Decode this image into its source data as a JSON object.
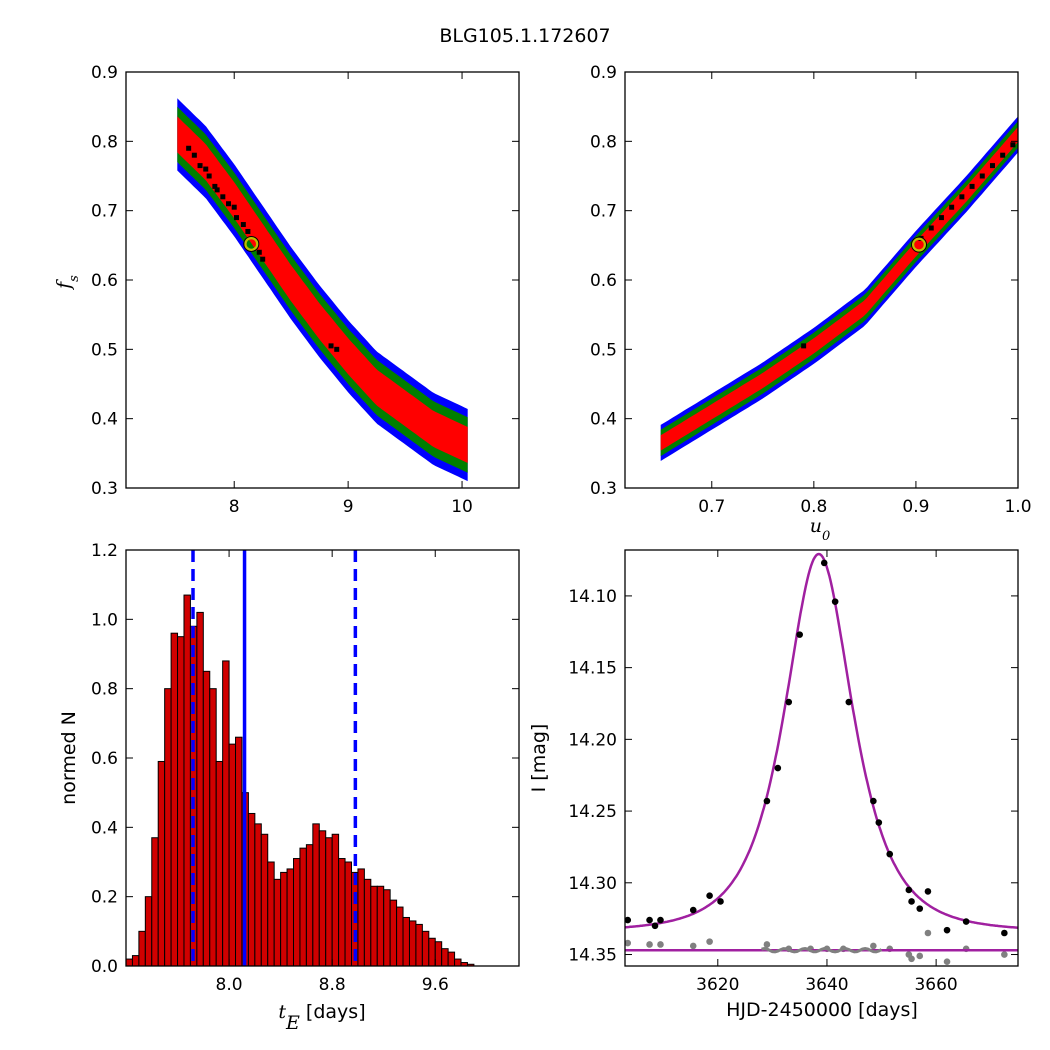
{
  "figure_title": "BLG105.1.172607",
  "colors": {
    "outer_contour": "#0000ff",
    "mid_contour": "#007f00",
    "inner_contour": "#ff0000",
    "mcmc_points": "#000000",
    "best_fit_marker_edge": "#bfbf00",
    "hist_bars": "#d00000",
    "median_line": "#0000ff",
    "model_curve": "#a020a0",
    "residuals": "#808080"
  },
  "chart_data": [
    {
      "id": "panel_tE_fs",
      "type": "heatmap",
      "title": "",
      "xlabel": "",
      "ylabel_base": "f",
      "ylabel_sub": "s",
      "xlim": [
        7.05,
        10.5
      ],
      "ylim": [
        0.3,
        0.9
      ],
      "xticks": [
        8,
        9,
        10
      ],
      "xtick_labels": [
        "8",
        "9",
        "10"
      ],
      "yticks": [
        0.3,
        0.4,
        0.5,
        0.6,
        0.7,
        0.8,
        0.9
      ],
      "ytick_labels": [
        "0.3",
        "0.4",
        "0.5",
        "0.6",
        "0.7",
        "0.8",
        "0.9"
      ],
      "contour_ridge": [
        [
          7.5,
          0.81
        ],
        [
          7.75,
          0.77
        ],
        [
          8.0,
          0.715
        ],
        [
          8.25,
          0.655
        ],
        [
          8.5,
          0.595
        ],
        [
          8.75,
          0.54
        ],
        [
          9.0,
          0.49
        ],
        [
          9.25,
          0.445
        ],
        [
          9.5,
          0.415
        ],
        [
          9.75,
          0.385
        ],
        [
          10.05,
          0.362
        ]
      ],
      "contour_halfwidth_fs": {
        "outer": 0.052,
        "mid": 0.04,
        "inner": 0.026
      },
      "mcmc_points": [
        [
          7.6,
          0.79
        ],
        [
          7.65,
          0.78
        ],
        [
          7.7,
          0.765
        ],
        [
          7.75,
          0.76
        ],
        [
          7.78,
          0.75
        ],
        [
          7.83,
          0.735
        ],
        [
          7.85,
          0.73
        ],
        [
          7.9,
          0.72
        ],
        [
          7.95,
          0.71
        ],
        [
          8.0,
          0.705
        ],
        [
          8.02,
          0.69
        ],
        [
          8.08,
          0.68
        ],
        [
          8.12,
          0.67
        ],
        [
          8.22,
          0.64
        ],
        [
          8.25,
          0.63
        ],
        [
          8.85,
          0.505
        ],
        [
          8.9,
          0.5
        ]
      ],
      "best_fit": [
        8.15,
        0.652
      ]
    },
    {
      "id": "panel_u0_fs",
      "type": "heatmap",
      "title": "",
      "xlabel_base": "u",
      "xlabel_sub": "0",
      "ylabel": "",
      "xlim": [
        0.615,
        1.0
      ],
      "ylim": [
        0.3,
        0.9
      ],
      "xticks": [
        0.7,
        0.8,
        0.9,
        1.0
      ],
      "xtick_labels": [
        "0.7",
        "0.8",
        "0.9",
        "1.0"
      ],
      "yticks": [
        0.3,
        0.4,
        0.5,
        0.6,
        0.7,
        0.8,
        0.9
      ],
      "ytick_labels": [
        "0.3",
        "0.4",
        "0.5",
        "0.6",
        "0.7",
        "0.8",
        "0.9"
      ],
      "contour_ridge": [
        [
          0.65,
          0.365
        ],
        [
          0.7,
          0.41
        ],
        [
          0.75,
          0.455
        ],
        [
          0.8,
          0.505
        ],
        [
          0.85,
          0.56
        ],
        [
          0.9,
          0.645
        ],
        [
          0.95,
          0.725
        ],
        [
          1.0,
          0.81
        ]
      ],
      "contour_halfwidth_fs": {
        "outer": 0.026,
        "mid": 0.019,
        "inner": 0.011
      },
      "mcmc_points": [
        [
          0.79,
          0.505
        ],
        [
          0.905,
          0.66
        ],
        [
          0.915,
          0.675
        ],
        [
          0.925,
          0.69
        ],
        [
          0.935,
          0.705
        ],
        [
          0.945,
          0.72
        ],
        [
          0.955,
          0.735
        ],
        [
          0.965,
          0.75
        ],
        [
          0.975,
          0.765
        ],
        [
          0.985,
          0.78
        ],
        [
          0.995,
          0.795
        ]
      ],
      "best_fit": [
        0.903,
        0.651
      ]
    },
    {
      "id": "panel_tE_hist",
      "type": "bar",
      "title": "",
      "xlabel_base": "t",
      "xlabel_sub": "E",
      "xlabel_suffix": " [days]",
      "ylabel": "normed N",
      "xlim": [
        7.2,
        10.25
      ],
      "ylim": [
        0.0,
        1.2
      ],
      "xticks": [
        8.0,
        8.8,
        9.6
      ],
      "xtick_labels": [
        "8.0",
        "8.8",
        "9.6"
      ],
      "yticks": [
        0.0,
        0.2,
        0.4,
        0.6,
        0.8,
        1.0,
        1.2
      ],
      "ytick_labels": [
        "0.0",
        "0.2",
        "0.4",
        "0.6",
        "0.8",
        "1.0",
        "1.2"
      ],
      "bin_start": 7.2,
      "bin_width": 0.05,
      "values": [
        0.02,
        0.03,
        0.1,
        0.2,
        0.37,
        0.59,
        0.8,
        0.96,
        0.95,
        1.07,
        0.98,
        1.02,
        0.85,
        0.8,
        0.59,
        0.88,
        0.64,
        0.66,
        0.5,
        0.44,
        0.41,
        0.38,
        0.3,
        0.25,
        0.27,
        0.28,
        0.31,
        0.34,
        0.35,
        0.41,
        0.39,
        0.37,
        0.38,
        0.31,
        0.3,
        0.27,
        0.28,
        0.25,
        0.23,
        0.23,
        0.22,
        0.19,
        0.17,
        0.14,
        0.13,
        0.12,
        0.1,
        0.08,
        0.07,
        0.05,
        0.04,
        0.02,
        0.01,
        0.005
      ],
      "median_tE": 8.12,
      "quantile_tE": [
        7.72,
        8.98
      ]
    },
    {
      "id": "panel_lightcurve",
      "type": "scatter",
      "title": "",
      "xlabel": "HJD-2450000 [days]",
      "ylabel": "I [mag]",
      "xlim": [
        3603,
        3675
      ],
      "ylim": [
        14.358,
        14.068
      ],
      "y_inverted": true,
      "xticks": [
        3620,
        3640,
        3660
      ],
      "xtick_labels": [
        "3620",
        "3640",
        "3660"
      ],
      "yticks": [
        14.1,
        14.15,
        14.2,
        14.25,
        14.3,
        14.35
      ],
      "ytick_labels": [
        "14.10",
        "14.15",
        "14.20",
        "14.25",
        "14.30",
        "14.35"
      ],
      "model": {
        "t0": 3638.5,
        "u0": 0.903,
        "tE": 8.15,
        "fs": 0.652,
        "I_base": 14.334
      },
      "baseline_I": 14.347,
      "data_points": [
        [
          3603.5,
          14.326
        ],
        [
          3607.5,
          14.326
        ],
        [
          3608.5,
          14.33
        ],
        [
          3609.5,
          14.326
        ],
        [
          3615.5,
          14.319
        ],
        [
          3618.5,
          14.309
        ],
        [
          3620.5,
          14.313
        ],
        [
          3629,
          14.243
        ],
        [
          3631,
          14.22
        ],
        [
          3633,
          14.174
        ],
        [
          3635,
          14.127
        ],
        [
          3639.5,
          14.077
        ],
        [
          3641.5,
          14.104
        ],
        [
          3644,
          14.174
        ],
        [
          3648.5,
          14.243
        ],
        [
          3649.5,
          14.258
        ],
        [
          3651.5,
          14.28
        ],
        [
          3655,
          14.305
        ],
        [
          3655.5,
          14.313
        ],
        [
          3657,
          14.318
        ],
        [
          3658.5,
          14.306
        ],
        [
          3662,
          14.333
        ],
        [
          3665.5,
          14.327
        ],
        [
          3672.5,
          14.335
        ]
      ],
      "residual_points": [
        [
          3603.5,
          14.342
        ],
        [
          3607.5,
          14.343
        ],
        [
          3609.5,
          14.343
        ],
        [
          3615.5,
          14.344
        ],
        [
          3618.5,
          14.341
        ],
        [
          3629,
          14.343
        ],
        [
          3633,
          14.346
        ],
        [
          3637,
          14.346
        ],
        [
          3640,
          14.346
        ],
        [
          3643,
          14.346
        ],
        [
          3648.5,
          14.344
        ],
        [
          3651.5,
          14.346
        ],
        [
          3655,
          14.35
        ],
        [
          3655.5,
          14.353
        ],
        [
          3657,
          14.351
        ],
        [
          3658.5,
          14.335
        ],
        [
          3662,
          14.355
        ],
        [
          3665.5,
          14.346
        ],
        [
          3672.5,
          14.35
        ]
      ]
    }
  ]
}
